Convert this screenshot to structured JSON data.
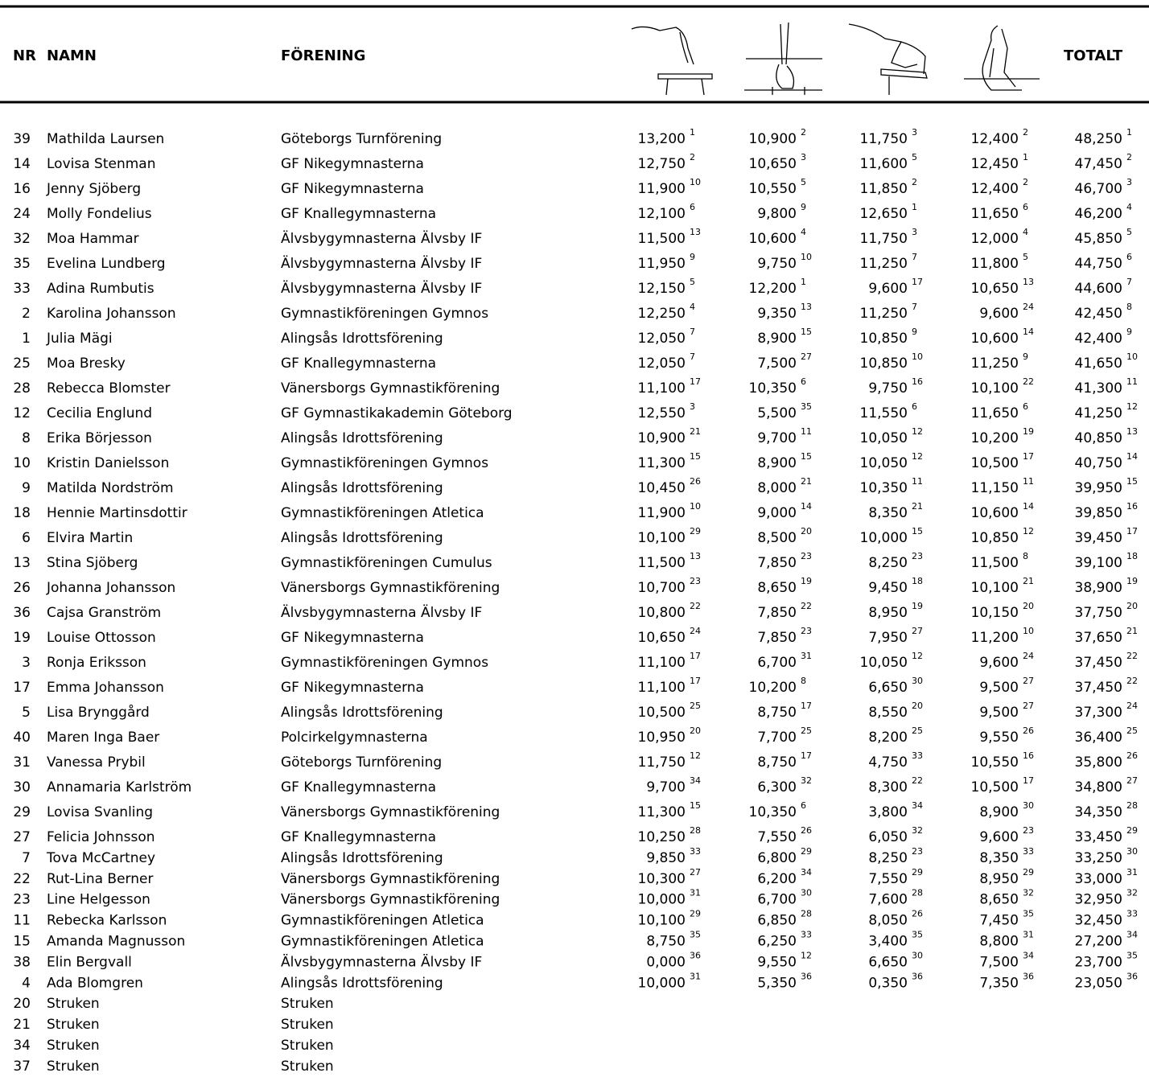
{
  "header": {
    "nr": "NR",
    "name": "NAMN",
    "club": "FÖRENING",
    "total": "TOTALT"
  },
  "rows": [
    [
      39,
      "Mathilda Laursen",
      "Göteborgs Turnförening",
      "13,200",
      1,
      "10,900",
      2,
      "11,750",
      3,
      "12,400",
      2,
      "48,250",
      1
    ],
    [
      14,
      "Lovisa Stenman",
      "GF Nikegymnasterna",
      "12,750",
      2,
      "10,650",
      3,
      "11,600",
      5,
      "12,450",
      1,
      "47,450",
      2
    ],
    [
      16,
      "Jenny Sjöberg",
      "GF Nikegymnasterna",
      "11,900",
      10,
      "10,550",
      5,
      "11,850",
      2,
      "12,400",
      2,
      "46,700",
      3
    ],
    [
      24,
      "Molly Fondelius",
      "GF Knallegymnasterna",
      "12,100",
      6,
      "9,800",
      9,
      "12,650",
      1,
      "11,650",
      6,
      "46,200",
      4
    ],
    [
      32,
      "Moa Hammar",
      "Älvsbygymnasterna Älvsby IF",
      "11,500",
      13,
      "10,600",
      4,
      "11,750",
      3,
      "12,000",
      4,
      "45,850",
      5
    ],
    [
      35,
      "Evelina Lundberg",
      "Älvsbygymnasterna Älvsby IF",
      "11,950",
      9,
      "9,750",
      10,
      "11,250",
      7,
      "11,800",
      5,
      "44,750",
      6
    ],
    [
      33,
      "Adina Rumbutis",
      "Älvsbygymnasterna Älvsby IF",
      "12,150",
      5,
      "12,200",
      1,
      "9,600",
      17,
      "10,650",
      13,
      "44,600",
      7
    ],
    [
      2,
      "Karolina Johansson",
      "Gymnastikföreningen Gymnos",
      "12,250",
      4,
      "9,350",
      13,
      "11,250",
      7,
      "9,600",
      24,
      "42,450",
      8
    ],
    [
      1,
      "Julia Mägi",
      "Alingsås Idrottsförening",
      "12,050",
      7,
      "8,900",
      15,
      "10,850",
      9,
      "10,600",
      14,
      "42,400",
      9
    ],
    [
      25,
      "Moa Bresky",
      "GF Knallegymnasterna",
      "12,050",
      7,
      "7,500",
      27,
      "10,850",
      10,
      "11,250",
      9,
      "41,650",
      10
    ],
    [
      28,
      "Rebecca Blomster",
      "Vänersborgs Gymnastikförening",
      "11,100",
      17,
      "10,350",
      6,
      "9,750",
      16,
      "10,100",
      22,
      "41,300",
      11
    ],
    [
      12,
      "Cecilia Englund",
      "GF Gymnastikakademin Göteborg",
      "12,550",
      3,
      "5,500",
      35,
      "11,550",
      6,
      "11,650",
      6,
      "41,250",
      12
    ],
    [
      8,
      "Erika Börjesson",
      "Alingsås Idrottsförening",
      "10,900",
      21,
      "9,700",
      11,
      "10,050",
      12,
      "10,200",
      19,
      "40,850",
      13
    ],
    [
      10,
      "Kristin Danielsson",
      "Gymnastikföreningen Gymnos",
      "11,300",
      15,
      "8,900",
      15,
      "10,050",
      12,
      "10,500",
      17,
      "40,750",
      14
    ],
    [
      9,
      "Matilda Nordström",
      "Alingsås Idrottsförening",
      "10,450",
      26,
      "8,000",
      21,
      "10,350",
      11,
      "11,150",
      11,
      "39,950",
      15
    ],
    [
      18,
      "Hennie Martinsdottir",
      "Gymnastikföreningen Atletica",
      "11,900",
      10,
      "9,000",
      14,
      "8,350",
      21,
      "10,600",
      14,
      "39,850",
      16
    ],
    [
      6,
      "Elvira Martin",
      "Alingsås Idrottsförening",
      "10,100",
      29,
      "8,500",
      20,
      "10,000",
      15,
      "10,850",
      12,
      "39,450",
      17
    ],
    [
      13,
      "Stina Sjöberg",
      "Gymnastikföreningen Cumulus",
      "11,500",
      13,
      "7,850",
      23,
      "8,250",
      23,
      "11,500",
      8,
      "39,100",
      18
    ],
    [
      26,
      "Johanna Johansson",
      "Vänersborgs Gymnastikförening",
      "10,700",
      23,
      "8,650",
      19,
      "9,450",
      18,
      "10,100",
      21,
      "38,900",
      19
    ],
    [
      36,
      "Cajsa Granström",
      "Älvsbygymnasterna Älvsby IF",
      "10,800",
      22,
      "7,850",
      22,
      "8,950",
      19,
      "10,150",
      20,
      "37,750",
      20
    ],
    [
      19,
      "Louise Ottosson",
      "GF Nikegymnasterna",
      "10,650",
      24,
      "7,850",
      23,
      "7,950",
      27,
      "11,200",
      10,
      "37,650",
      21
    ],
    [
      3,
      "Ronja Eriksson",
      "Gymnastikföreningen Gymnos",
      "11,100",
      17,
      "6,700",
      31,
      "10,050",
      12,
      "9,600",
      24,
      "37,450",
      22
    ],
    [
      17,
      "Emma Johansson",
      "GF Nikegymnasterna",
      "11,100",
      17,
      "10,200",
      8,
      "6,650",
      30,
      "9,500",
      27,
      "37,450",
      22
    ],
    [
      5,
      "Lisa Brynggård",
      "Alingsås Idrottsförening",
      "10,500",
      25,
      "8,750",
      17,
      "8,550",
      20,
      "9,500",
      27,
      "37,300",
      24
    ],
    [
      40,
      "Maren Inga Baer",
      "Polcirkelgymnasterna",
      "10,950",
      20,
      "7,700",
      25,
      "8,200",
      25,
      "9,550",
      26,
      "36,400",
      25
    ],
    [
      31,
      "Vanessa Prybil",
      "Göteborgs Turnförening",
      "11,750",
      12,
      "8,750",
      17,
      "4,750",
      33,
      "10,550",
      16,
      "35,800",
      26
    ],
    [
      30,
      "Annamaria Karlström",
      "GF Knallegymnasterna",
      "9,700",
      34,
      "6,300",
      32,
      "8,300",
      22,
      "10,500",
      17,
      "34,800",
      27
    ],
    [
      29,
      "Lovisa Svanling",
      "Vänersborgs Gymnastikförening",
      "11,300",
      15,
      "10,350",
      6,
      "3,800",
      34,
      "8,900",
      30,
      "34,350",
      28
    ],
    [
      27,
      "Felicia Johnsson",
      "GF Knallegymnasterna",
      "10,250",
      28,
      "7,550",
      26,
      "6,050",
      32,
      "9,600",
      23,
      "33,450",
      29
    ],
    [
      7,
      "Tova McCartney",
      "Alingsås Idrottsförening",
      "9,850",
      33,
      "6,800",
      29,
      "8,250",
      23,
      "8,350",
      33,
      "33,250",
      30
    ],
    [
      22,
      "Rut-Lina Berner",
      "Vänersborgs Gymnastikförening",
      "10,300",
      27,
      "6,200",
      34,
      "7,550",
      29,
      "8,950",
      29,
      "33,000",
      31
    ],
    [
      23,
      "Line Helgesson",
      "Vänersborgs Gymnastikförening",
      "10,000",
      31,
      "6,700",
      30,
      "7,600",
      28,
      "8,650",
      32,
      "32,950",
      32
    ],
    [
      11,
      "Rebecka Karlsson",
      "Gymnastikföreningen Atletica",
      "10,100",
      29,
      "6,850",
      28,
      "8,050",
      26,
      "7,450",
      35,
      "32,450",
      33
    ],
    [
      15,
      "Amanda Magnusson",
      "Gymnastikföreningen Atletica",
      "8,750",
      35,
      "6,250",
      33,
      "3,400",
      35,
      "8,800",
      31,
      "27,200",
      34
    ],
    [
      38,
      "Elin Bergvall",
      "Älvsbygymnasterna Älvsby IF",
      "0,000",
      36,
      "9,550",
      12,
      "6,650",
      30,
      "7,500",
      34,
      "23,700",
      35
    ],
    [
      4,
      "Ada Blomgren",
      "Alingsås Idrottsförening",
      "10,000",
      31,
      "5,350",
      36,
      "0,350",
      36,
      "7,350",
      36,
      "23,050",
      36
    ],
    [
      20,
      "Struken",
      "Struken"
    ],
    [
      21,
      "Struken",
      "Struken"
    ],
    [
      34,
      "Struken",
      "Struken"
    ],
    [
      37,
      "Struken",
      "Struken"
    ]
  ]
}
